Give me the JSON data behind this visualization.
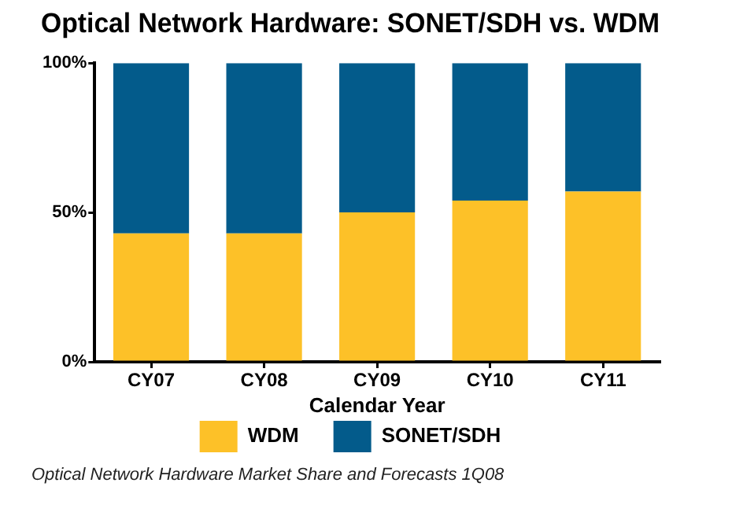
{
  "chart_data": {
    "type": "bar",
    "title": "Optical Network Hardware: SONET/SDH vs. WDM",
    "xlabel": "Calendar Year",
    "categories": [
      "CY07",
      "CY08",
      "CY09",
      "CY10",
      "CY11"
    ],
    "series": [
      {
        "name": "WDM",
        "color": "#fdc128",
        "values": [
          43,
          43,
          50,
          54,
          57
        ]
      },
      {
        "name": "SONET/SDH",
        "color": "#035b8b",
        "values": [
          57,
          57,
          50,
          46,
          43
        ]
      }
    ],
    "stacked": true,
    "ylim": [
      0,
      100
    ],
    "yticks": [
      {
        "value": 0,
        "label": "0%"
      },
      {
        "value": 50,
        "label": "50%"
      },
      {
        "value": 100,
        "label": "100%"
      }
    ],
    "legend": "bottom",
    "annotations": [
      "Optical Network Hardware Market Share and Forecasts 1Q08"
    ]
  }
}
